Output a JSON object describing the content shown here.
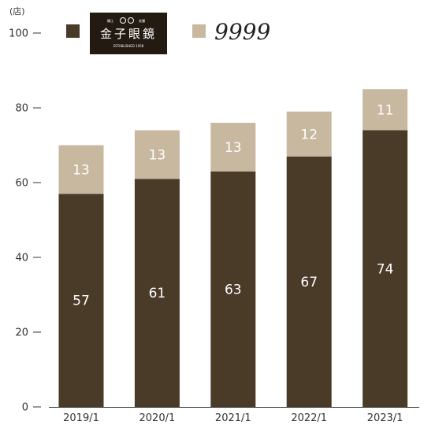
{
  "chart_data": {
    "type": "bar",
    "stacked": true,
    "unit": "(店)",
    "categories": [
      "2019/1",
      "2020/1",
      "2021/1",
      "2022/1",
      "2023/1"
    ],
    "series": [
      {
        "name": "金子眼鏡",
        "color": "#4a3a28",
        "values": [
          57,
          61,
          63,
          67,
          74
        ]
      },
      {
        "name": "9999",
        "color": "#c8b8a0",
        "values": [
          13,
          13,
          13,
          12,
          11
        ]
      }
    ],
    "ylim": [
      0,
      100
    ],
    "yticks": [
      0,
      20,
      40,
      60,
      80,
      100
    ],
    "legend_position": "top",
    "grid": false
  },
  "legend": {
    "logo_main": "金子眼鏡",
    "logo_top_left": "鯖江",
    "logo_top_right": "老舗",
    "logo_bottom": "ESTABLISHED 1958"
  }
}
